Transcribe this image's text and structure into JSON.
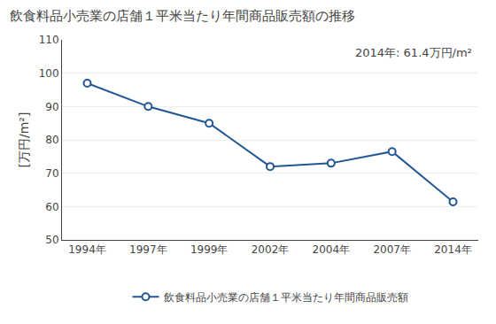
{
  "chart_data": {
    "type": "line",
    "title": "飲食料品小売業の店舗１平米当たり年間商品販売額の推移",
    "ylabel": "[万円/m²]",
    "annotation": "2014年: 61.4万円/m²",
    "categories": [
      "1994年",
      "1997年",
      "1999年",
      "2002年",
      "2004年",
      "2007年",
      "2014年"
    ],
    "series": [
      {
        "name": "飲食料品小売業の店舗１平米当たり年間商品販売額",
        "color": "#215794",
        "values": [
          97.0,
          90.0,
          85.0,
          72.0,
          73.0,
          76.5,
          61.4
        ]
      }
    ],
    "ylim": [
      50,
      110
    ],
    "yticks": [
      50,
      60,
      70,
      80,
      90,
      100,
      110
    ],
    "grid": true,
    "legend": "bottom",
    "marker": "circle"
  }
}
